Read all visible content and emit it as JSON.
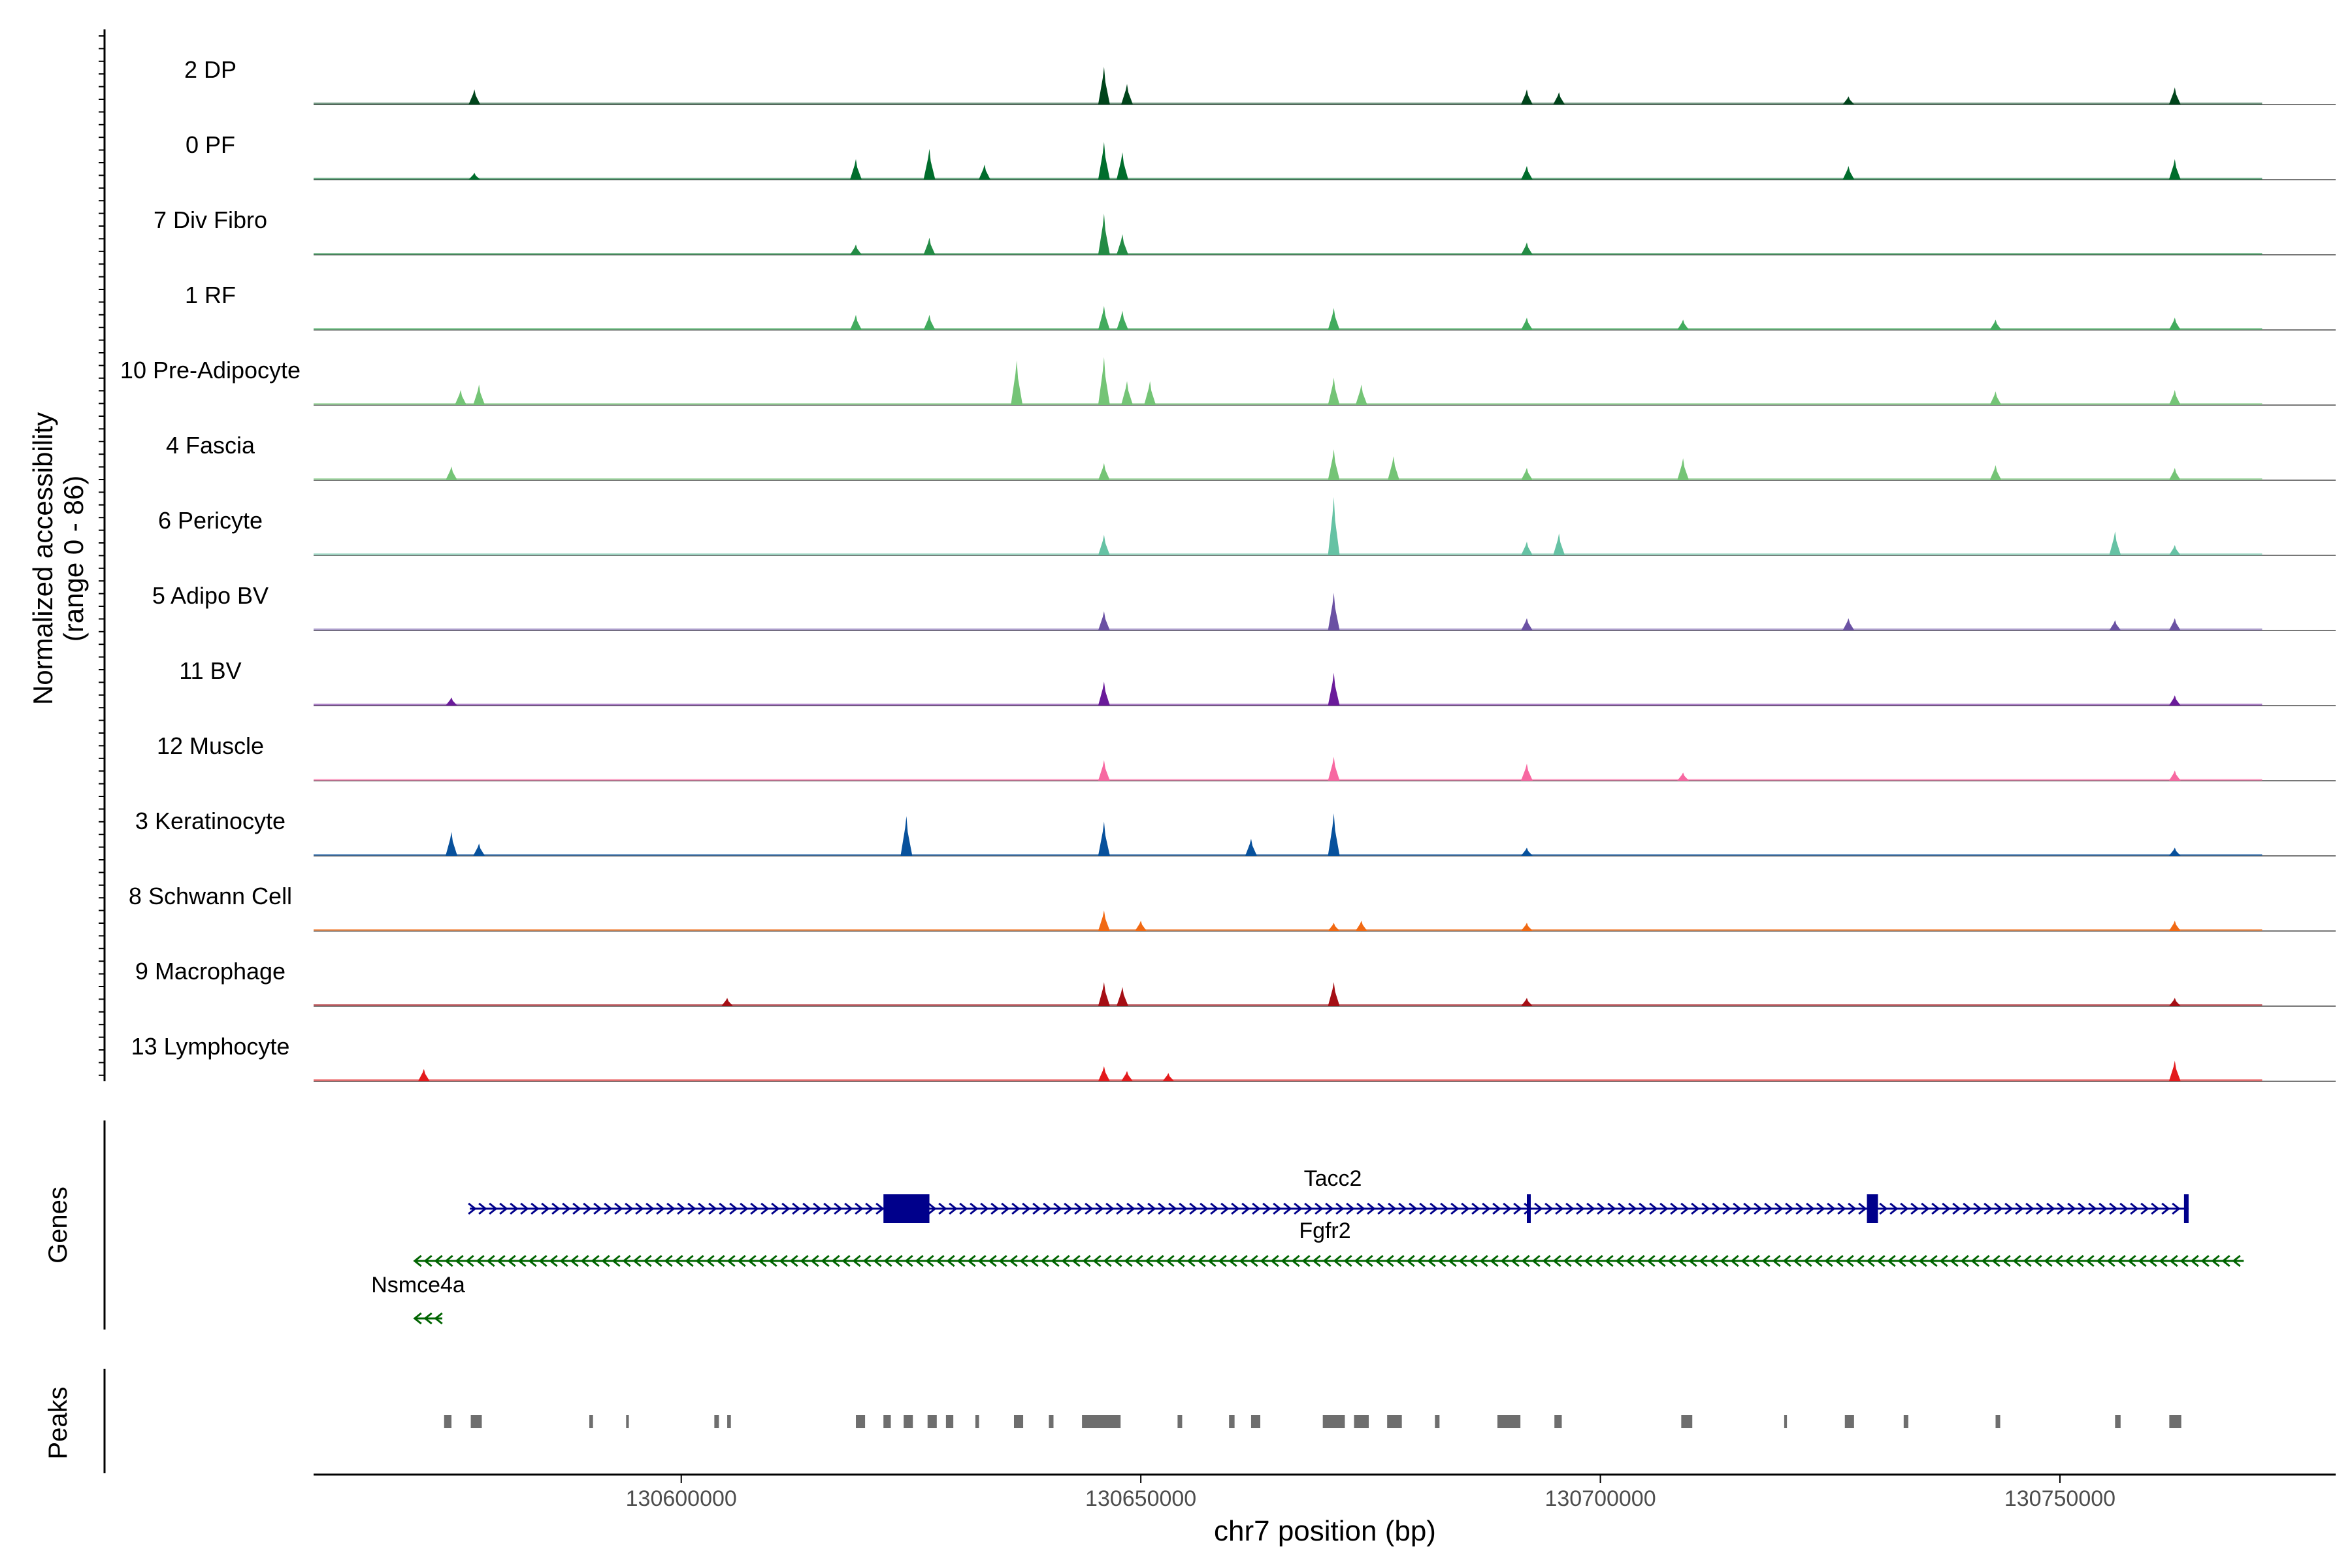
{
  "chart_data": {
    "type": "area",
    "title": "",
    "chromosome": "chr7",
    "xlabel": "chr7 position (bp)",
    "ylabel": "Normalized accessibility",
    "ylabel_range": "(range 0 - 86)",
    "xlim": [
      130560000,
      130780000
    ],
    "x_ticks": [
      130600000,
      130650000,
      130700000,
      130750000
    ],
    "x_tick_labels": [
      "130600000",
      "130650000",
      "130700000",
      "130750000"
    ],
    "peak_max": 86,
    "track_start": 130560000,
    "track_end": 130772000,
    "tracks": [
      {
        "name": "2 DP",
        "color": "#00441b",
        "peaks": [
          [
            130577500,
            0.22
          ],
          [
            130646000,
            0.55
          ],
          [
            130648500,
            0.3
          ],
          [
            130692000,
            0.22
          ],
          [
            130695500,
            0.18
          ],
          [
            130727000,
            0.12
          ],
          [
            130762500,
            0.25
          ]
        ]
      },
      {
        "name": "0 PF",
        "color": "#006d2c",
        "peaks": [
          [
            130577500,
            0.1
          ],
          [
            130619000,
            0.3
          ],
          [
            130627000,
            0.45
          ],
          [
            130633000,
            0.22
          ],
          [
            130646000,
            0.55
          ],
          [
            130648000,
            0.4
          ],
          [
            130692000,
            0.2
          ],
          [
            130727000,
            0.2
          ],
          [
            130762500,
            0.3
          ]
        ]
      },
      {
        "name": "7 Div Fibro",
        "color": "#238b45",
        "peaks": [
          [
            130619000,
            0.15
          ],
          [
            130627000,
            0.25
          ],
          [
            130646000,
            0.6
          ],
          [
            130648000,
            0.3
          ],
          [
            130692000,
            0.18
          ]
        ]
      },
      {
        "name": "1 RF",
        "color": "#41ab5d",
        "peaks": [
          [
            130619000,
            0.22
          ],
          [
            130627000,
            0.22
          ],
          [
            130646000,
            0.35
          ],
          [
            130648000,
            0.28
          ],
          [
            130671000,
            0.32
          ],
          [
            130692000,
            0.18
          ],
          [
            130709000,
            0.15
          ],
          [
            130743000,
            0.15
          ],
          [
            130762500,
            0.18
          ]
        ]
      },
      {
        "name": "10 Pre-Adipocyte",
        "color": "#74c476",
        "peaks": [
          [
            130576000,
            0.22
          ],
          [
            130578000,
            0.3
          ],
          [
            130636500,
            0.65
          ],
          [
            130646000,
            0.7
          ],
          [
            130648500,
            0.35
          ],
          [
            130651000,
            0.35
          ],
          [
            130671000,
            0.4
          ],
          [
            130674000,
            0.3
          ],
          [
            130743000,
            0.2
          ],
          [
            130762500,
            0.22
          ]
        ]
      },
      {
        "name": "4 Fascia",
        "color": "#74c476",
        "peaks": [
          [
            130575000,
            0.2
          ],
          [
            130646000,
            0.25
          ],
          [
            130671000,
            0.45
          ],
          [
            130677500,
            0.35
          ],
          [
            130692000,
            0.18
          ],
          [
            130709000,
            0.32
          ],
          [
            130743000,
            0.22
          ],
          [
            130762500,
            0.18
          ]
        ]
      },
      {
        "name": "6 Pericyte",
        "color": "#66c2a4",
        "peaks": [
          [
            130646000,
            0.3
          ],
          [
            130671000,
            0.85
          ],
          [
            130692000,
            0.2
          ],
          [
            130695500,
            0.32
          ],
          [
            130756000,
            0.35
          ],
          [
            130762500,
            0.15
          ]
        ]
      },
      {
        "name": "5 Adipo BV",
        "color": "#6a51a3",
        "peaks": [
          [
            130646000,
            0.28
          ],
          [
            130671000,
            0.55
          ],
          [
            130692000,
            0.18
          ],
          [
            130727000,
            0.18
          ],
          [
            130756000,
            0.15
          ],
          [
            130762500,
            0.18
          ]
        ]
      },
      {
        "name": "11 BV",
        "color": "#6a1b9a",
        "peaks": [
          [
            130575000,
            0.12
          ],
          [
            130646000,
            0.35
          ],
          [
            130671000,
            0.48
          ],
          [
            130762500,
            0.15
          ]
        ]
      },
      {
        "name": "12 Muscle",
        "color": "#f768a1",
        "peaks": [
          [
            130646000,
            0.3
          ],
          [
            130671000,
            0.35
          ],
          [
            130692000,
            0.25
          ],
          [
            130709000,
            0.12
          ],
          [
            130762500,
            0.15
          ]
        ]
      },
      {
        "name": "3 Keratinocyte",
        "color": "#08519c",
        "peaks": [
          [
            130575000,
            0.35
          ],
          [
            130578000,
            0.18
          ],
          [
            130624500,
            0.58
          ],
          [
            130646000,
            0.5
          ],
          [
            130662000,
            0.25
          ],
          [
            130671000,
            0.62
          ],
          [
            130692000,
            0.12
          ],
          [
            130762500,
            0.12
          ]
        ]
      },
      {
        "name": "8 Schwann Cell",
        "color": "#f16913",
        "peaks": [
          [
            130646000,
            0.3
          ],
          [
            130650000,
            0.15
          ],
          [
            130671000,
            0.12
          ],
          [
            130674000,
            0.15
          ],
          [
            130692000,
            0.12
          ],
          [
            130762500,
            0.15
          ]
        ]
      },
      {
        "name": "9 Macrophage",
        "color": "#a50f15",
        "peaks": [
          [
            130646000,
            0.35
          ],
          [
            130648000,
            0.28
          ],
          [
            130671000,
            0.35
          ],
          [
            130605000,
            0.12
          ],
          [
            130692000,
            0.12
          ],
          [
            130762500,
            0.12
          ]
        ]
      },
      {
        "name": "13 Lymphocyte",
        "color": "#e31a1c",
        "peaks": [
          [
            130572000,
            0.18
          ],
          [
            130646000,
            0.22
          ],
          [
            130648500,
            0.15
          ],
          [
            130653000,
            0.12
          ],
          [
            130762500,
            0.3
          ]
        ]
      }
    ],
    "genes_label": "Genes",
    "genes": [
      {
        "name": "Tacc2",
        "strand": "+",
        "color": "#00008b",
        "start": 130577000,
        "end": 130764000,
        "exons": [
          [
            130622000,
            130627000
          ],
          [
            130692000,
            130692400
          ],
          [
            130729000,
            130730200
          ],
          [
            130763500,
            130764000
          ]
        ]
      },
      {
        "name": "Fgfr2",
        "strand": "-",
        "color": "#006400",
        "start": 130571000,
        "end": 130770000,
        "exons": []
      },
      {
        "name": "Nsmce4a",
        "strand": "-",
        "color": "#006400",
        "start": 130571000,
        "end": 130574000,
        "exons": []
      }
    ],
    "peaks_label": "Peaks",
    "peak_regions": [
      [
        130574200,
        130575000
      ],
      [
        130577100,
        130578300
      ],
      [
        130590000,
        130590400
      ],
      [
        130594000,
        130594300
      ],
      [
        130603600,
        130604100
      ],
      [
        130605000,
        130605400
      ],
      [
        130619000,
        130620000
      ],
      [
        130622000,
        130622800
      ],
      [
        130624200,
        130625200
      ],
      [
        130626800,
        130627800
      ],
      [
        130628800,
        130629600
      ],
      [
        130632000,
        130632400
      ],
      [
        130636200,
        130637200
      ],
      [
        130640000,
        130640500
      ],
      [
        130643600,
        130647800
      ],
      [
        130654000,
        130654500
      ],
      [
        130659600,
        130660200
      ],
      [
        130662000,
        130663000
      ],
      [
        130669800,
        130672200
      ],
      [
        130673200,
        130674800
      ],
      [
        130676800,
        130678400
      ],
      [
        130682000,
        130682500
      ],
      [
        130688800,
        130691300
      ],
      [
        130695000,
        130695800
      ],
      [
        130708800,
        130710000
      ],
      [
        130720000,
        130720300
      ],
      [
        130726600,
        130727600
      ],
      [
        130733000,
        130733500
      ],
      [
        130743000,
        130743500
      ],
      [
        130756000,
        130756600
      ],
      [
        130761900,
        130763200
      ]
    ]
  }
}
